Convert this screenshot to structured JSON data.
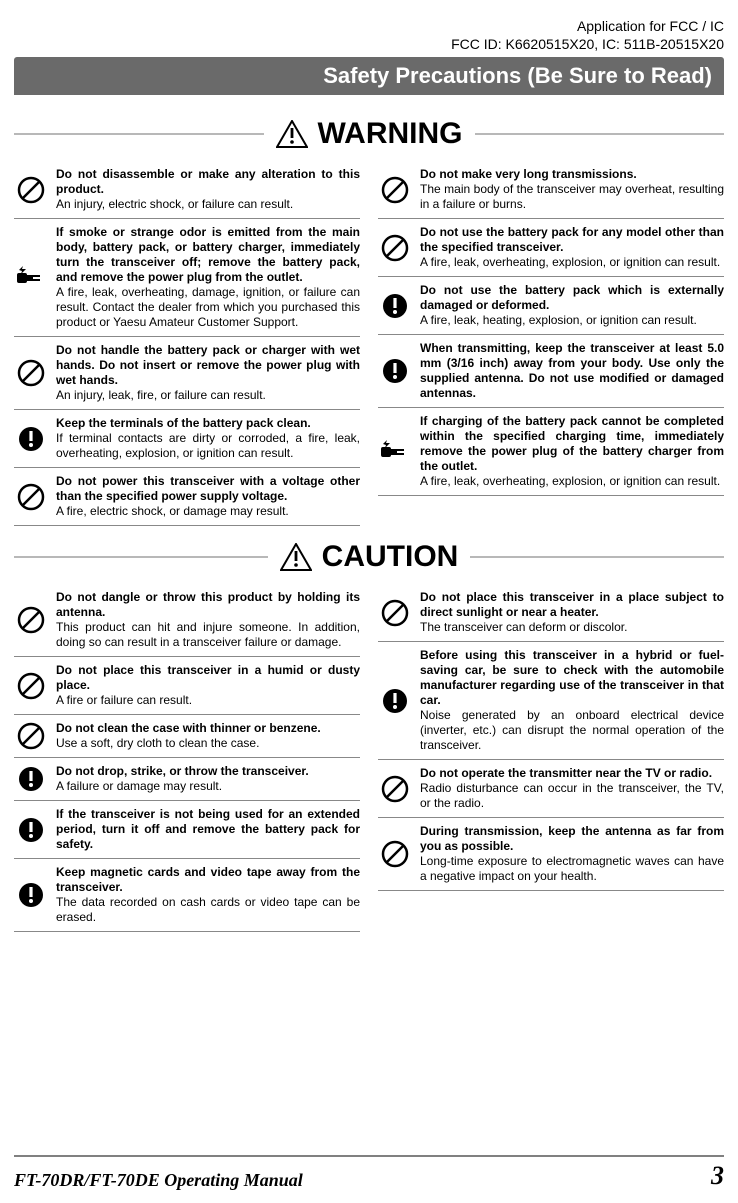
{
  "top_note_line1": "Application for FCC / IC",
  "top_note_line2": "FCC ID: K6620515X20, IC: 511B-20515X20",
  "title_bar": "Safety Precautions (Be Sure to Read)",
  "warning_label": "WARNING",
  "caution_label": "CAUTION",
  "manual_title": "FT-70DR/FT-70DE Operating Manual",
  "page_number": "3",
  "colors": {
    "title_bar_bg": "#6a6a6a",
    "title_bar_fg": "#ffffff",
    "rule": "#b8b8b8",
    "item_border": "#888888",
    "footer_border": "#808080",
    "text": "#000000",
    "bg": "#ffffff"
  },
  "warning": {
    "left": [
      {
        "icon": "prohibit",
        "bold": "Do not disassemble or make any alteration to this product.",
        "rest": "An injury, electric shock, or failure can result."
      },
      {
        "icon": "unplug",
        "bold": "If smoke or strange odor is emitted from the main body, battery pack, or battery charger, immediately turn the transceiver off; remove the battery pack, and remove the power plug from the outlet.",
        "rest": "A fire, leak, overheating, damage, ignition, or failure can result. Contact the dealer from which you purchased this product or Yaesu Amateur Customer Support."
      },
      {
        "icon": "prohibit",
        "bold": "Do not handle the battery pack or charger with wet hands. Do not insert or remove the power plug with wet hands.",
        "rest": "An injury, leak, fire, or failure can result."
      },
      {
        "icon": "mandatory",
        "bold": "Keep the terminals of the battery pack clean.",
        "rest": "If terminal contacts are dirty or corroded, a fire, leak, overheating, explosion, or ignition can result."
      },
      {
        "icon": "prohibit",
        "bold": "Do not power this transceiver with a voltage other than the specified power supply voltage.",
        "rest": "A fire, electric shock, or damage may result."
      }
    ],
    "right": [
      {
        "icon": "prohibit",
        "bold": "Do not make very long transmissions.",
        "rest": "The main body of the transceiver may overheat, resulting in a failure or burns."
      },
      {
        "icon": "prohibit",
        "bold": "Do not use the battery pack for any model other than the specified transceiver.",
        "rest": "A fire, leak, overheating, explosion, or ignition can result."
      },
      {
        "icon": "mandatory",
        "bold": "Do not use the battery pack which is externally damaged or deformed.",
        "rest": "A fire, leak, heating, explosion, or ignition can result."
      },
      {
        "icon": "mandatory",
        "bold": "When transmitting, keep the transceiver at least 5.0 mm (3/16 inch) away from your body.\nUse only the supplied antenna. Do not use modified or damaged antennas.",
        "rest": ""
      },
      {
        "icon": "unplug",
        "bold": "If charging of the battery pack cannot be completed within the specified charging time, immediately remove the power plug of the battery charger from the outlet.",
        "rest": "A fire, leak, overheating, explosion, or ignition can result."
      }
    ]
  },
  "caution": {
    "left": [
      {
        "icon": "prohibit",
        "bold": "Do not dangle or throw this product by holding its antenna.",
        "rest": "This product can hit and injure someone.\nIn addition, doing so can result in a transceiver failure or damage."
      },
      {
        "icon": "prohibit",
        "bold": "Do not place this transceiver in a humid or dusty place.",
        "rest": "A fire or failure can result."
      },
      {
        "icon": "prohibit",
        "bold": "Do not clean the case with thinner or benzene.",
        "rest": "Use a soft, dry cloth to clean the case."
      },
      {
        "icon": "mandatory",
        "bold": "Do not drop, strike, or throw the transceiver.",
        "rest": "A failure or damage may result."
      },
      {
        "icon": "mandatory",
        "bold": "If the transceiver is not being used for an extended period, turn it off and remove the battery pack for safety.",
        "rest": ""
      },
      {
        "icon": "mandatory",
        "bold": "Keep magnetic cards and video tape away from the transceiver.",
        "rest": "The data recorded on cash cards or video tape can be erased."
      }
    ],
    "right": [
      {
        "icon": "prohibit",
        "bold": "Do not place this transceiver in a place subject to direct sunlight or near a heater.",
        "rest": "The transceiver can deform or discolor."
      },
      {
        "icon": "mandatory",
        "bold": "Before using this transceiver in a hybrid or fuel-saving car, be sure to check with the automobile manufacturer regarding use of the transceiver\nin that car.",
        "rest": "Noise generated by an onboard electrical device (inverter, etc.) can disrupt the normal operation of the transceiver."
      },
      {
        "icon": "prohibit",
        "bold": "Do not operate the transmitter near the TV or radio.",
        "rest": "Radio disturbance can occur in the transceiver, the TV, or the radio."
      },
      {
        "icon": "prohibit",
        "bold": "During transmission, keep the antenna as far from you as possible.",
        "rest": "Long-time exposure to electromagnetic waves can have a negative impact on your health."
      }
    ]
  }
}
